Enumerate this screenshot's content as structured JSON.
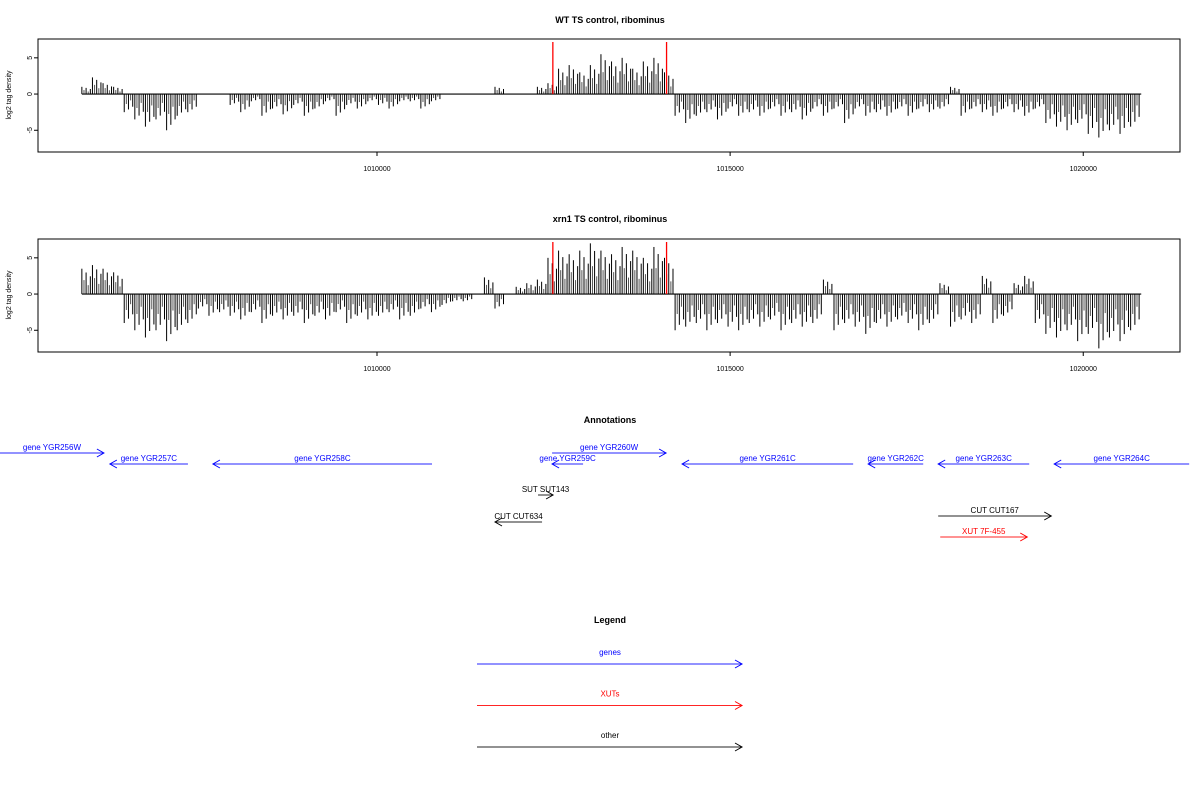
{
  "chart_data": [
    {
      "type": "bar",
      "title": "WT TS control, ribominus",
      "ylabel": "log2 tag density",
      "xlim": [
        1005200,
        1021370
      ],
      "ylim": [
        -8,
        7.6
      ],
      "xticks": [
        1010000,
        1015000,
        1020000
      ],
      "xtick_labels": [
        "1010000",
        "1015000",
        "1020000"
      ],
      "yticks": [
        -5,
        0,
        5
      ],
      "ytick_labels": [
        "-5",
        "0",
        "5"
      ],
      "bin_start": 1005821,
      "bin_width": 150,
      "values": [
        1,
        2.3,
        1.5,
        1,
        -2.5,
        -3.5,
        -4.5,
        -3.5,
        -5,
        -3,
        -2.5,
        0,
        0,
        0,
        -1.5,
        -2.5,
        -1,
        -3,
        -2,
        -2.8,
        -1.5,
        -3,
        -2,
        -1,
        -3,
        -1.5,
        -2,
        -1,
        -1.5,
        -2,
        -1,
        -1,
        -2,
        -1,
        0,
        0,
        0,
        0,
        0,
        1,
        0,
        0,
        0,
        1,
        1.5,
        3.5,
        4,
        3,
        4,
        5.5,
        4.5,
        5,
        3.5,
        4.5,
        5,
        3,
        -3,
        -4,
        -3,
        -2.5,
        -3.5,
        -2,
        -3,
        -2.5,
        -3,
        -2,
        -3,
        -2.5,
        -3.5,
        -2,
        -3,
        -2,
        -4,
        -2,
        -3,
        -2.5,
        -3,
        -2,
        -3,
        -2,
        -2.5,
        -2,
        1,
        -3,
        -2,
        -2.5,
        -3,
        -2,
        -2.5,
        -3,
        -2,
        -4,
        -4.5,
        -5,
        -4,
        -5.5,
        -6,
        -5,
        -5.5,
        -4.5
      ],
      "highlight_boundaries": [
        1012490,
        1014100
      ],
      "highlight_color": "#ff0000"
    },
    {
      "type": "bar",
      "title": "xrn1 TS control, ribominus",
      "ylabel": "log2 tag density",
      "xlim": [
        1005200,
        1021370
      ],
      "ylim": [
        -8,
        7.6
      ],
      "xticks": [
        1010000,
        1015000,
        1020000
      ],
      "xtick_labels": [
        "1010000",
        "1015000",
        "1020000"
      ],
      "yticks": [
        -5,
        0,
        5
      ],
      "ytick_labels": [
        "-5",
        "0",
        "5"
      ],
      "bin_start": 1005821,
      "bin_width": 150,
      "values": [
        3.5,
        4,
        3.5,
        3,
        -4,
        -5,
        -6,
        -5,
        -6.5,
        -5,
        -4,
        -2,
        -3,
        -2.5,
        -3,
        -3.5,
        -2.5,
        -4,
        -3,
        -3.5,
        -3,
        -4,
        -3,
        -3.5,
        -2.5,
        -4,
        -3,
        -3.5,
        -3,
        -2.5,
        -3.5,
        -3,
        -2,
        -2.5,
        -1.5,
        -1,
        -1,
        0,
        2.3,
        -2,
        0,
        1,
        1.5,
        2,
        5,
        6,
        5.5,
        6,
        7,
        6,
        5.5,
        6.5,
        6,
        5,
        6.5,
        5,
        -5,
        -4.5,
        -4,
        -5,
        -4,
        -4.5,
        -5,
        -4,
        -4.5,
        -3.5,
        -5,
        -4,
        -4.5,
        -4,
        2,
        -5,
        -4,
        -4.5,
        -5.5,
        -4,
        -4.5,
        -3.5,
        -4,
        -5,
        -4,
        1.5,
        -4.5,
        -3.5,
        -4,
        2.5,
        -4,
        -3,
        1.5,
        2.5,
        -4,
        -5.5,
        -6,
        -5,
        -6.5,
        -5.5,
        -7.5,
        -6,
        -6.5,
        -5
      ],
      "highlight_boundaries": [
        1012490,
        1014100
      ],
      "highlight_color": "#ff0000"
    }
  ],
  "annotations": {
    "title": "Annotations",
    "features": [
      {
        "label": "gene YGR256W",
        "start": 1004600,
        "end": 1006133,
        "strand": "+",
        "kind": "genes",
        "row": 1
      },
      {
        "label": "gene YGR257C",
        "start": 1006218,
        "end": 1007323,
        "strand": "-",
        "kind": "genes",
        "row": 2
      },
      {
        "label": "gene YGR258C",
        "start": 1007677,
        "end": 1010779,
        "strand": "-",
        "kind": "genes",
        "row": 2
      },
      {
        "label": "gene YGR259C",
        "start": 1012479,
        "end": 1012918,
        "strand": "-",
        "kind": "genes",
        "row": 2
      },
      {
        "label": "gene YGR260W",
        "start": 1012479,
        "end": 1014093,
        "strand": "+",
        "kind": "genes",
        "row": 1
      },
      {
        "label": "gene YGR261C",
        "start": 1014320,
        "end": 1016742,
        "strand": "-",
        "kind": "genes",
        "row": 2
      },
      {
        "label": "gene YGR262C",
        "start": 1016955,
        "end": 1017734,
        "strand": "-",
        "kind": "genes",
        "row": 2
      },
      {
        "label": "gene YGR263C",
        "start": 1017946,
        "end": 1019235,
        "strand": "-",
        "kind": "genes",
        "row": 2
      },
      {
        "label": "gene YGR264C",
        "start": 1019589,
        "end": 1021500,
        "strand": "-",
        "kind": "genes",
        "row": 2
      },
      {
        "label": "SUT SUT143",
        "start": 1012280,
        "end": 1012493,
        "strand": "+",
        "kind": "other",
        "row": 3
      },
      {
        "label": "CUT CUT634",
        "start": 1011671,
        "end": 1012337,
        "strand": "-",
        "kind": "other",
        "row": 5
      },
      {
        "label": "CUT CUT167",
        "start": 1017946,
        "end": 1019547,
        "strand": "+",
        "kind": "other",
        "row": 4
      },
      {
        "label": "XUT 7F-455",
        "start": 1017975,
        "end": 1019207,
        "strand": "+",
        "kind": "XUTs",
        "row": 6
      }
    ]
  },
  "legend": {
    "title": "Legend",
    "items": [
      {
        "label": "genes",
        "color": "#0000ff"
      },
      {
        "label": "XUTs",
        "color": "#ff0000"
      },
      {
        "label": "other",
        "color": "#000000"
      }
    ]
  }
}
